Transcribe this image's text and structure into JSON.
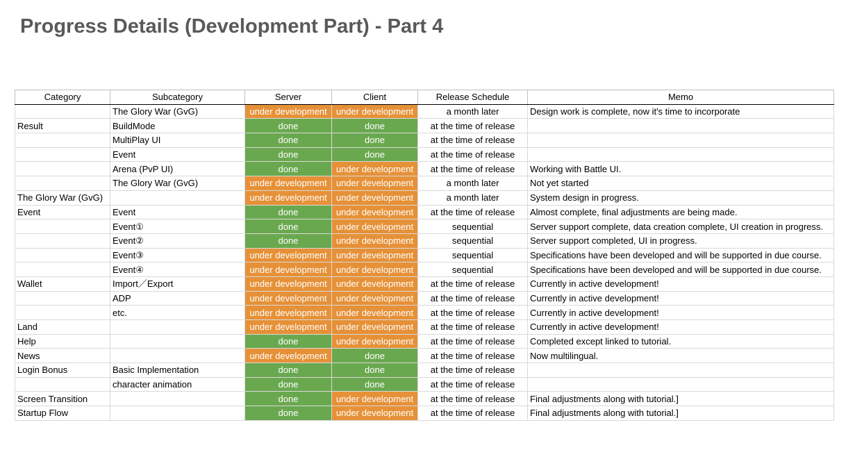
{
  "title": "Progress Details (Development Part) - Part 4",
  "colors": {
    "done": "#6aa84f",
    "under_development": "#e69138"
  },
  "table": {
    "headers": [
      "Category",
      "Subcategory",
      "Server",
      "Client",
      "Release Schedule",
      "Memo"
    ],
    "rows": [
      {
        "category": "",
        "subcategory": "The Glory War (GvG)",
        "server": "under development",
        "client": "under development",
        "release": "a month later",
        "memo": "Design work is complete, now it's time to incorporate"
      },
      {
        "category": "Result",
        "subcategory": "BuildMode",
        "server": "done",
        "client": "done",
        "release": "at the time of release",
        "memo": ""
      },
      {
        "category": "",
        "subcategory": "MultiPlay UI",
        "server": "done",
        "client": "done",
        "release": "at the time of release",
        "memo": ""
      },
      {
        "category": "",
        "subcategory": "Event",
        "server": "done",
        "client": "done",
        "release": "at the time of release",
        "memo": ""
      },
      {
        "category": "",
        "subcategory": "Arena (PvP UI)",
        "server": "done",
        "client": "under development",
        "release": "at the time of release",
        "memo": "Working with Battle UI."
      },
      {
        "category": "",
        "subcategory": "The Glory War (GvG)",
        "server": "under development",
        "client": "under development",
        "release": "a month later",
        "memo": "Not yet started"
      },
      {
        "category": "The Glory War (GvG)",
        "subcategory": "",
        "server": "under development",
        "client": "under development",
        "release": "a month later",
        "memo": "System design in progress."
      },
      {
        "category": "Event",
        "subcategory": "Event",
        "server": "done",
        "client": "under development",
        "release": "at the time of release",
        "memo": "Almost complete, final adjustments are being made."
      },
      {
        "category": "",
        "subcategory": "Event①",
        "server": "done",
        "client": "under development",
        "release": "sequential",
        "memo": "Server support complete, data creation complete, UI creation in progress."
      },
      {
        "category": "",
        "subcategory": "Event②",
        "server": "done",
        "client": "under development",
        "release": "sequential",
        "memo": "Server support completed, UI in progress."
      },
      {
        "category": "",
        "subcategory": "Event③",
        "server": "under development",
        "client": "under development",
        "release": "sequential",
        "memo": "Specifications have been developed and will be supported in due course."
      },
      {
        "category": "",
        "subcategory": "Event④",
        "server": "under development",
        "client": "under development",
        "release": "sequential",
        "memo": "Specifications have been developed and will be supported in due course."
      },
      {
        "category": "Wallet",
        "subcategory": "Import／Export",
        "server": "under development",
        "client": "under development",
        "release": "at the time of release",
        "memo": "Currently in active development!"
      },
      {
        "category": "",
        "subcategory": "ADP",
        "server": "under development",
        "client": "under development",
        "release": "at the time of release",
        "memo": "Currently in active development!"
      },
      {
        "category": "",
        "subcategory": "etc.",
        "server": "under development",
        "client": "under development",
        "release": "at the time of release",
        "memo": "Currently in active development!"
      },
      {
        "category": "Land",
        "subcategory": "",
        "server": "under development",
        "client": "under development",
        "release": "at the time of release",
        "memo": "Currently in active development!"
      },
      {
        "category": "Help",
        "subcategory": "",
        "server": "done",
        "client": "under development",
        "release": "at the time of release",
        "memo": "Completed except linked to tutorial."
      },
      {
        "category": "News",
        "subcategory": "",
        "server": "under development",
        "client": "done",
        "release": "at the time of release",
        "memo": "Now multilingual."
      },
      {
        "category": "Login Bonus",
        "subcategory": "Basic Implementation",
        "server": "done",
        "client": "done",
        "release": "at the time of release",
        "memo": ""
      },
      {
        "category": "",
        "subcategory": "character animation",
        "server": "done",
        "client": "done",
        "release": "at the time of release",
        "memo": ""
      },
      {
        "category": "Screen Transition",
        "subcategory": "",
        "server": "done",
        "client": "under development",
        "release": "at the time of release",
        "memo": "Final adjustments along with tutorial.]"
      },
      {
        "category": "Startup Flow",
        "subcategory": "",
        "server": "done",
        "client": "under development",
        "release": "at the time of release",
        "memo": "Final adjustments along with tutorial.]"
      }
    ]
  }
}
